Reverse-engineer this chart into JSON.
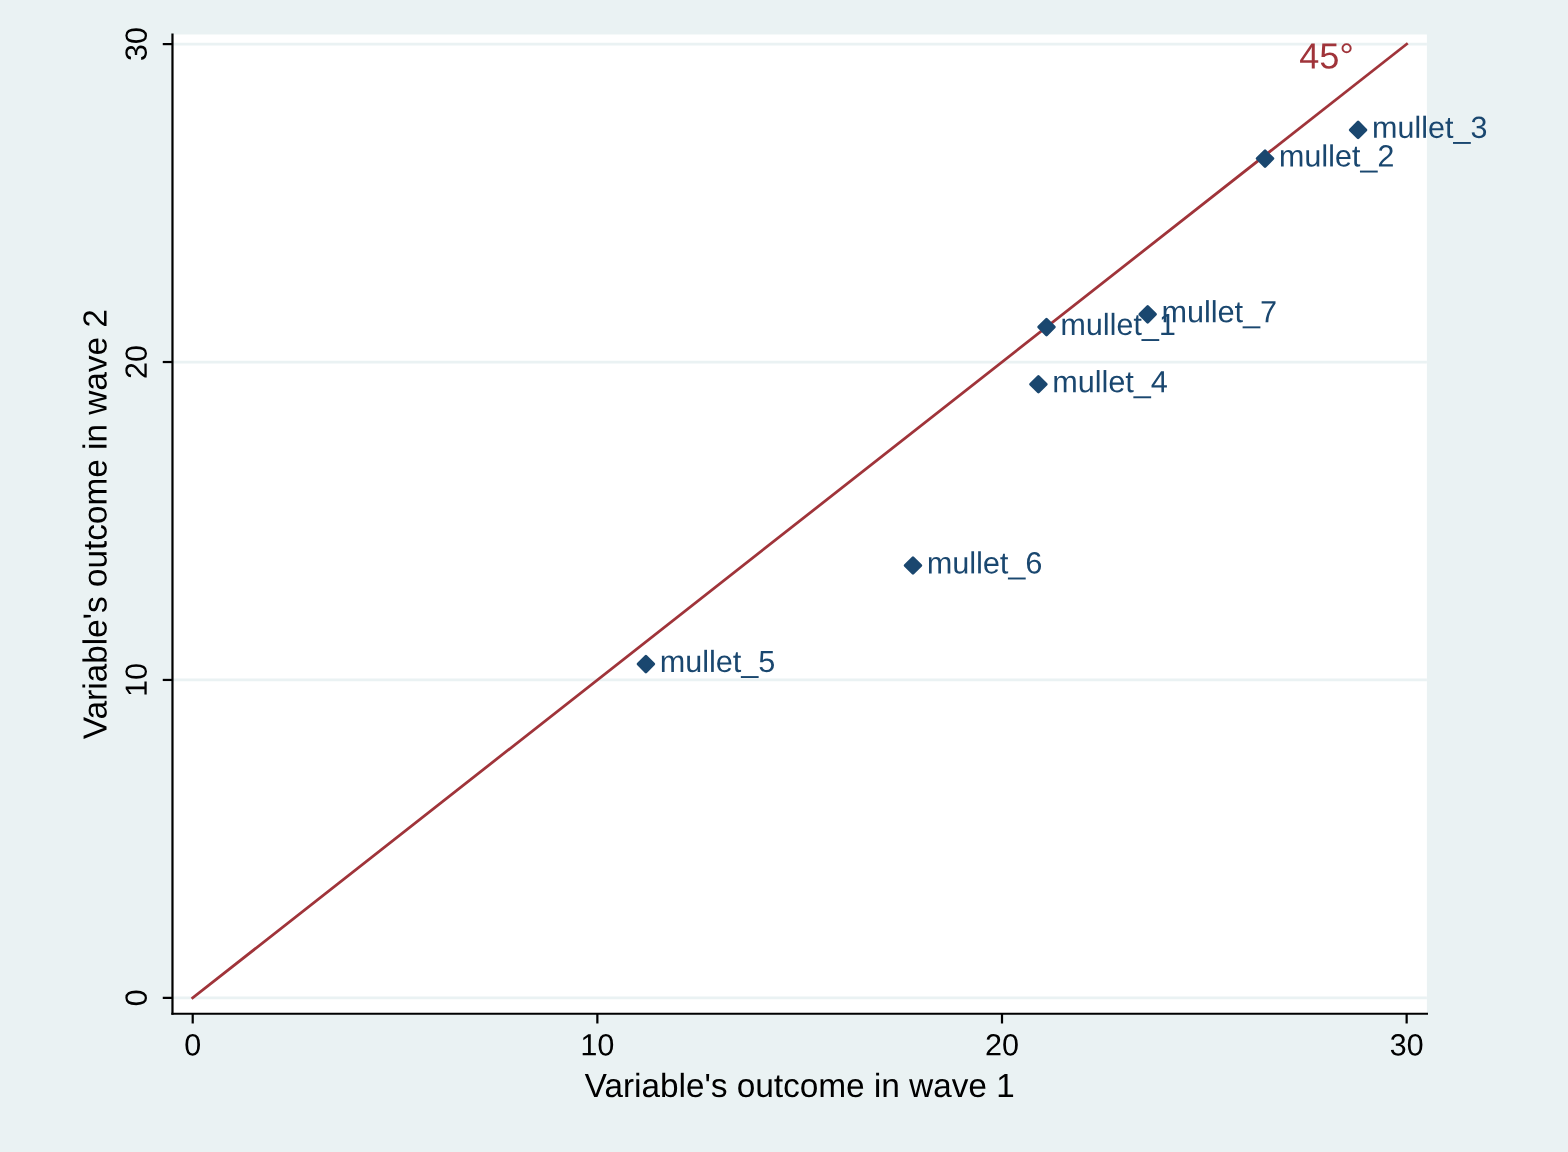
{
  "chart_data": {
    "type": "scatter",
    "xlabel": "Variable's outcome in wave 1",
    "ylabel": "Variable's outcome in wave 2",
    "xlim": [
      -0.5,
      30.5
    ],
    "ylim": [
      -0.5,
      30.3
    ],
    "xticks": [
      0,
      10,
      20,
      30
    ],
    "yticks": [
      0,
      10,
      20,
      30
    ],
    "grid": "y",
    "series": [
      {
        "marker": "diamond",
        "color": "#1a476f",
        "x": [
          21.1,
          26.5,
          28.8,
          20.9,
          11.2,
          17.8,
          23.6
        ],
        "values": [
          21.1,
          26.4,
          27.3,
          19.3,
          10.5,
          13.6,
          21.5
        ]
      },
      {
        "type": "line",
        "color": "#a0343a",
        "x": [
          0,
          30
        ],
        "values": [
          0,
          30
        ]
      }
    ],
    "annotations": [
      {
        "text": "mullet_1",
        "x": 21.1,
        "y": 21.1
      },
      {
        "text": "mullet_2",
        "x": 26.5,
        "y": 26.4
      },
      {
        "text": "mullet_3",
        "x": 28.8,
        "y": 27.3
      },
      {
        "text": "mullet_4",
        "x": 20.9,
        "y": 19.3
      },
      {
        "text": "mullet_5",
        "x": 11.2,
        "y": 10.5
      },
      {
        "text": "mullet_6",
        "x": 17.8,
        "y": 13.6
      },
      {
        "text": "mullet_7",
        "x": 23.6,
        "y": 21.5
      },
      "45°"
    ]
  }
}
